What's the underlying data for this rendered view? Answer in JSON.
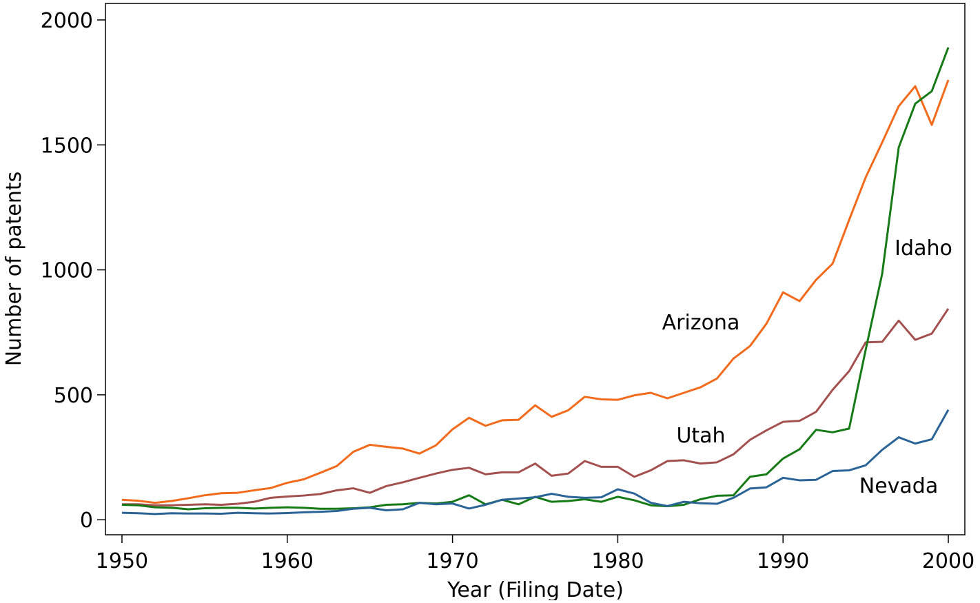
{
  "chart_data": {
    "type": "line",
    "x_label": "Year (Filing Date)",
    "y_label": "Number of patents",
    "x": [
      1950,
      1951,
      1952,
      1953,
      1954,
      1955,
      1956,
      1957,
      1958,
      1959,
      1960,
      1961,
      1962,
      1963,
      1964,
      1965,
      1966,
      1967,
      1968,
      1969,
      1970,
      1971,
      1972,
      1973,
      1974,
      1975,
      1976,
      1977,
      1978,
      1979,
      1980,
      1981,
      1982,
      1983,
      1984,
      1985,
      1986,
      1987,
      1988,
      1989,
      1990,
      1991,
      1992,
      1993,
      1994,
      1995,
      1996,
      1997,
      1998,
      1999,
      2000
    ],
    "series": [
      {
        "name": "Arizona",
        "color": "#f26a1b",
        "values": [
          80,
          76,
          68,
          75,
          86,
          98,
          106,
          108,
          118,
          127,
          148,
          162,
          188,
          215,
          272,
          300,
          292,
          285,
          265,
          298,
          362,
          408,
          376,
          398,
          400,
          458,
          412,
          438,
          492,
          482,
          480,
          498,
          508,
          486,
          508,
          530,
          565,
          645,
          695,
          785,
          910,
          875,
          960,
          1025,
          1200,
          1370,
          1510,
          1655,
          1735,
          1580,
          1760
        ]
      },
      {
        "name": "Utah",
        "color": "#a3504e",
        "values": [
          62,
          62,
          58,
          58,
          60,
          62,
          60,
          64,
          72,
          88,
          93,
          97,
          103,
          118,
          126,
          108,
          135,
          150,
          168,
          185,
          200,
          208,
          182,
          190,
          190,
          225,
          176,
          185,
          235,
          212,
          212,
          172,
          198,
          235,
          238,
          225,
          230,
          262,
          320,
          358,
          392,
          396,
          432,
          520,
          595,
          710,
          712,
          797,
          720,
          745,
          845
        ]
      },
      {
        "name": "Idaho",
        "color": "#167a16",
        "values": [
          60,
          58,
          50,
          48,
          42,
          46,
          48,
          48,
          45,
          48,
          50,
          48,
          44,
          44,
          46,
          50,
          60,
          62,
          68,
          65,
          72,
          98,
          62,
          80,
          62,
          92,
          72,
          75,
          82,
          72,
          92,
          78,
          58,
          54,
          60,
          82,
          96,
          98,
          172,
          182,
          245,
          282,
          360,
          350,
          365,
          680,
          985,
          1490,
          1665,
          1715,
          1890
        ]
      },
      {
        "name": "Nevada",
        "color": "#2a6496",
        "values": [
          28,
          26,
          23,
          26,
          25,
          25,
          24,
          28,
          26,
          25,
          27,
          30,
          32,
          35,
          44,
          48,
          38,
          42,
          68,
          62,
          65,
          45,
          60,
          80,
          85,
          90,
          104,
          92,
          88,
          90,
          122,
          105,
          68,
          55,
          72,
          66,
          64,
          88,
          125,
          130,
          168,
          158,
          160,
          195,
          198,
          218,
          280,
          330,
          305,
          322,
          440
        ]
      }
    ],
    "xlim": [
      1949,
      2001
    ],
    "ylim": [
      -60,
      2066
    ],
    "xticks": [
      1950,
      1960,
      1970,
      1980,
      1990,
      2000
    ],
    "yticks": [
      0,
      500,
      1000,
      1500,
      2000
    ],
    "grid": false
  }
}
